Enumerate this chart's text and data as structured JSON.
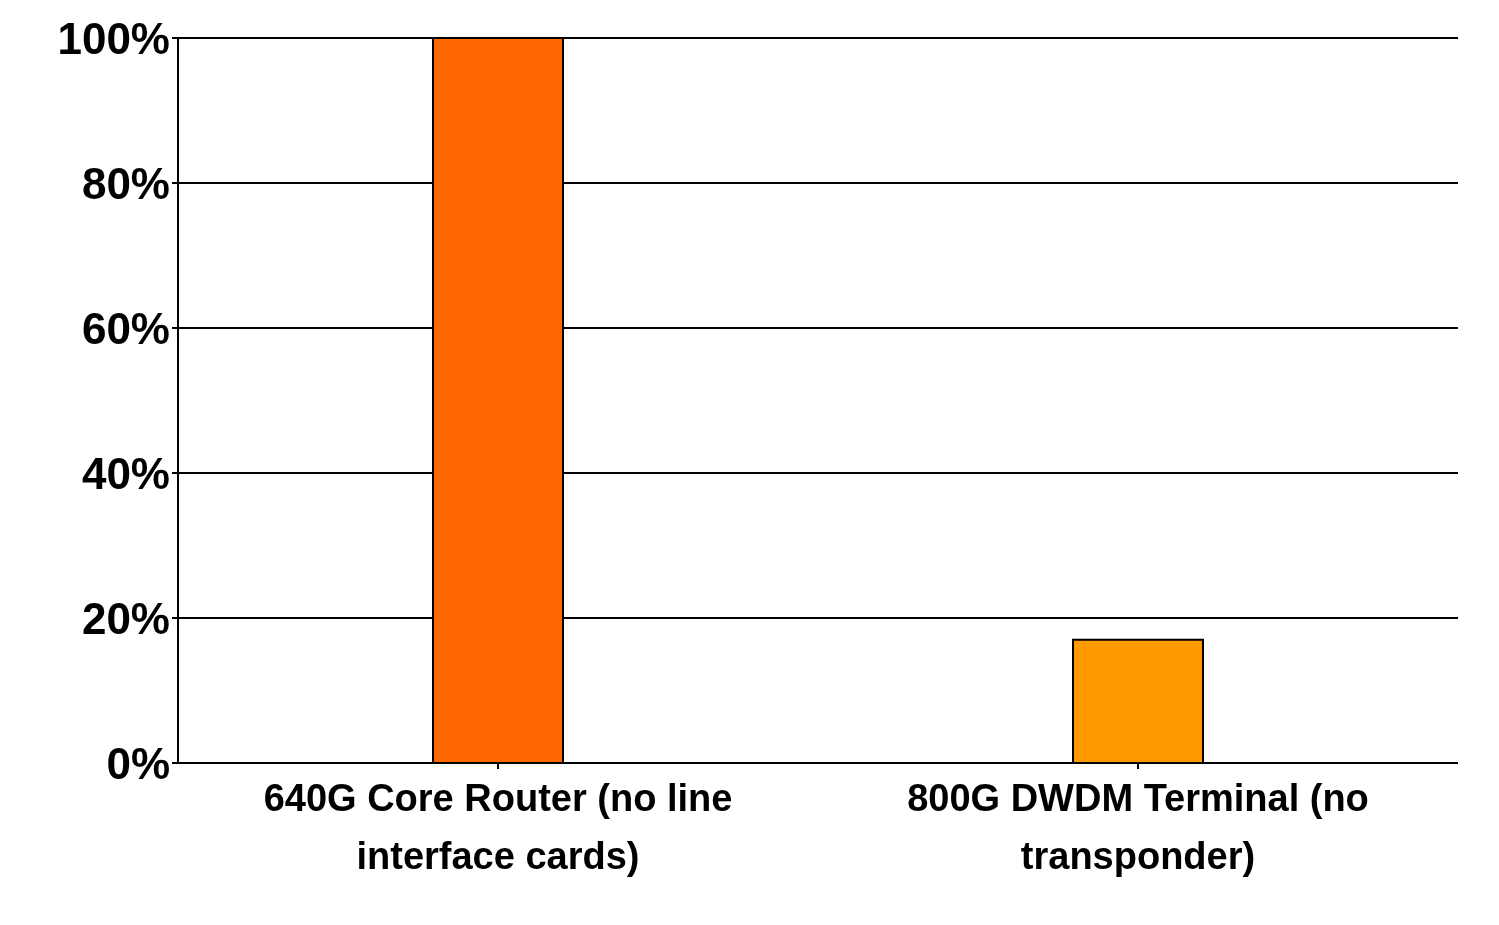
{
  "chart_data": {
    "type": "bar",
    "categories": [
      "640G Core Router (no line interface cards)",
      "800G DWDM Terminal (no transponder)"
    ],
    "values": [
      100,
      17
    ],
    "colors": [
      "#ff6600",
      "#ff9900"
    ],
    "ylim": [
      0,
      100
    ],
    "yticks": [
      {
        "value": 0,
        "label": "0%"
      },
      {
        "value": 20,
        "label": "20%"
      },
      {
        "value": 40,
        "label": "40%"
      },
      {
        "value": 60,
        "label": "60%"
      },
      {
        "value": 80,
        "label": "80%"
      },
      {
        "value": 100,
        "label": "100%"
      }
    ],
    "grid": "y"
  }
}
